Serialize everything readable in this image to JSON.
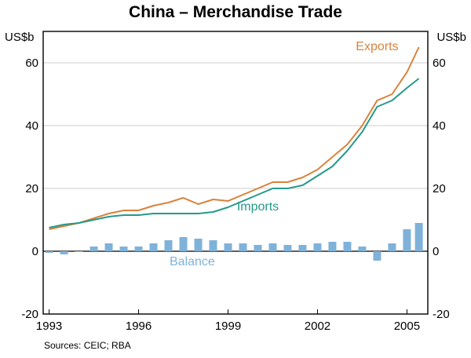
{
  "chart_data": {
    "type": "line",
    "title": "China – Merchandise Trade",
    "ylabel_left": "US$b",
    "ylabel_right": "US$b",
    "ylim": [
      -20,
      70
    ],
    "yticks": [
      60,
      40,
      20,
      0,
      -20
    ],
    "ytick_labels": [
      "60",
      "40",
      "20",
      "0",
      "-20"
    ],
    "x_range": [
      1992.8,
      2005.7
    ],
    "xticks": [
      1993,
      1996,
      1999,
      2002,
      2005
    ],
    "xtick_labels": [
      "1993",
      "1996",
      "1999",
      "2002",
      "2005"
    ],
    "grid": true,
    "source": "Sources: CEIC; RBA",
    "colors": {
      "exports": "#d9823b",
      "imports": "#26998b",
      "balance": "#7fb2d9",
      "grid": "#bdbdbd",
      "axis": "#000000"
    },
    "series": [
      {
        "name": "Exports",
        "type": "line",
        "label": "Exports",
        "x": [
          1993.0,
          1993.5,
          1994.0,
          1994.5,
          1995.0,
          1995.5,
          1996.0,
          1996.5,
          1997.0,
          1997.5,
          1998.0,
          1998.5,
          1999.0,
          1999.5,
          2000.0,
          2000.5,
          2001.0,
          2001.5,
          2002.0,
          2002.5,
          2003.0,
          2003.5,
          2004.0,
          2004.5,
          2005.0,
          2005.4
        ],
        "values": [
          7.0,
          8.0,
          9.0,
          10.5,
          12.0,
          13.0,
          13.0,
          14.5,
          15.5,
          17.0,
          15.0,
          16.5,
          16.0,
          18.0,
          20.0,
          22.0,
          22.0,
          23.5,
          26.0,
          30.0,
          34.0,
          40.0,
          48.0,
          50.0,
          57.0,
          65.0
        ]
      },
      {
        "name": "Imports",
        "type": "line",
        "label": "Imports",
        "x": [
          1993.0,
          1993.5,
          1994.0,
          1994.5,
          1995.0,
          1995.5,
          1996.0,
          1996.5,
          1997.0,
          1997.5,
          1998.0,
          1998.5,
          1999.0,
          1999.5,
          2000.0,
          2000.5,
          2001.0,
          2001.5,
          2002.0,
          2002.5,
          2003.0,
          2003.5,
          2004.0,
          2004.5,
          2005.0,
          2005.4
        ],
        "values": [
          7.5,
          8.5,
          9.0,
          10.0,
          11.0,
          11.5,
          11.5,
          12.0,
          12.0,
          12.0,
          12.0,
          12.5,
          14.0,
          16.0,
          18.0,
          20.0,
          20.0,
          21.0,
          24.0,
          27.0,
          32.0,
          38.0,
          46.0,
          48.0,
          52.0,
          55.0
        ]
      },
      {
        "name": "Balance",
        "type": "bar",
        "label": "Balance",
        "x": [
          1993.0,
          1993.5,
          1994.0,
          1994.5,
          1995.0,
          1995.5,
          1996.0,
          1996.5,
          1997.0,
          1997.5,
          1998.0,
          1998.5,
          1999.0,
          1999.5,
          2000.0,
          2000.5,
          2001.0,
          2001.5,
          2002.0,
          2002.5,
          2003.0,
          2003.5,
          2004.0,
          2004.5,
          2005.0,
          2005.4
        ],
        "values": [
          -0.5,
          -1.0,
          0.0,
          1.5,
          2.5,
          1.5,
          1.5,
          2.5,
          3.5,
          4.5,
          4.0,
          3.5,
          2.5,
          2.5,
          2.0,
          2.5,
          2.0,
          2.0,
          2.5,
          3.0,
          3.0,
          1.5,
          -3.0,
          2.5,
          7.0,
          9.0
        ]
      }
    ]
  }
}
